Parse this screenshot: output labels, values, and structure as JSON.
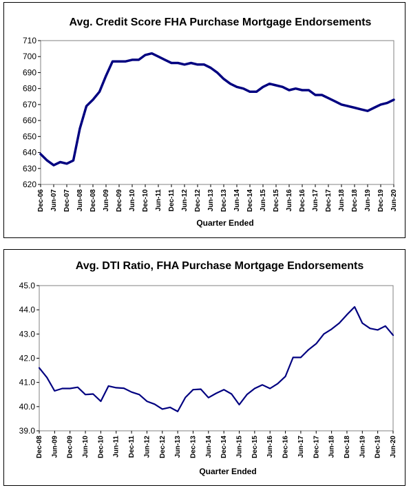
{
  "chart_data": [
    {
      "type": "line",
      "title": "Avg. Credit Score  FHA Purchase Mortgage Endorsements",
      "xlabel": "Quarter Ended",
      "ylabel": "",
      "ylim": [
        620,
        710
      ],
      "yticks": [
        620,
        630,
        640,
        650,
        660,
        670,
        680,
        690,
        700,
        710
      ],
      "grid": false,
      "line_color": "#000080",
      "xtick_labels": [
        "Dec-06",
        "Jun-07",
        "Dec-07",
        "Jun-08",
        "Dec-08",
        "Jun-09",
        "Dec-09",
        "Jun-10",
        "Dec-10",
        "Jun-11",
        "Dec-11",
        "Jun-12",
        "Dec-12",
        "Jun-13",
        "Dec-13",
        "Jun-14",
        "Dec-14",
        "Jun-15",
        "Dec-15",
        "Jun-16",
        "Dec-16",
        "Jun-17",
        "Dec-17",
        "Jun-18",
        "Dec-18",
        "Jun-19",
        "Dec-19",
        "Jun-20"
      ],
      "x": [
        "Dec-06",
        "Mar-07",
        "Jun-07",
        "Sep-07",
        "Dec-07",
        "Mar-08",
        "Jun-08",
        "Sep-08",
        "Dec-08",
        "Mar-09",
        "Jun-09",
        "Sep-09",
        "Dec-09",
        "Mar-10",
        "Jun-10",
        "Sep-10",
        "Dec-10",
        "Mar-11",
        "Jun-11",
        "Sep-11",
        "Dec-11",
        "Mar-12",
        "Jun-12",
        "Sep-12",
        "Dec-12",
        "Mar-13",
        "Jun-13",
        "Sep-13",
        "Dec-13",
        "Mar-14",
        "Jun-14",
        "Sep-14",
        "Dec-14",
        "Mar-15",
        "Jun-15",
        "Sep-15",
        "Dec-15",
        "Mar-16",
        "Jun-16",
        "Sep-16",
        "Dec-16",
        "Mar-17",
        "Jun-17",
        "Sep-17",
        "Dec-17",
        "Mar-18",
        "Jun-18",
        "Sep-18",
        "Dec-18",
        "Mar-19",
        "Jun-19",
        "Sep-19",
        "Dec-19",
        "Mar-20",
        "Jun-20"
      ],
      "series": [
        {
          "values": [
            639,
            635,
            632,
            634,
            633,
            635,
            655,
            669,
            673,
            678,
            688,
            697,
            697,
            697,
            698,
            698,
            701,
            702,
            700,
            698,
            696,
            696,
            695,
            696,
            695,
            695,
            693,
            690,
            686,
            683,
            681,
            680,
            678,
            678,
            681,
            683,
            682,
            681,
            679,
            680,
            679,
            679,
            676,
            676,
            674,
            672,
            670,
            669,
            668,
            667,
            666,
            668,
            670,
            671,
            673
          ]
        }
      ]
    },
    {
      "type": "line",
      "title": "Avg. DTI Ratio, FHA Purchase Mortgage Endorsements",
      "xlabel": "Quarter Ended",
      "ylabel": "",
      "ylim": [
        39.0,
        45.0
      ],
      "yticks": [
        "39.0",
        "40.0",
        "41.0",
        "42.0",
        "43.0",
        "44.0",
        "45.0"
      ],
      "grid": false,
      "line_color": "#000080",
      "xtick_labels": [
        "Dec-08",
        "Jun-09",
        "Dec-09",
        "Jun-10",
        "Dec-10",
        "Jun-11",
        "Dec-11",
        "Jun-12",
        "Dec-12",
        "Jun-13",
        "Dec-13",
        "Jun-14",
        "Dec-14",
        "Jun-15",
        "Dec-15",
        "Jun-16",
        "Dec-16",
        "Jun-17",
        "Dec-17",
        "Jun-18",
        "Dec-18",
        "Jun-19",
        "Dec-19",
        "Jun-20"
      ],
      "x": [
        "Dec-08",
        "Mar-09",
        "Jun-09",
        "Sep-09",
        "Dec-09",
        "Mar-10",
        "Jun-10",
        "Sep-10",
        "Dec-10",
        "Mar-11",
        "Jun-11",
        "Sep-11",
        "Dec-11",
        "Mar-12",
        "Jun-12",
        "Sep-12",
        "Dec-12",
        "Mar-13",
        "Jun-13",
        "Sep-13",
        "Dec-13",
        "Mar-14",
        "Jun-14",
        "Sep-14",
        "Dec-14",
        "Mar-15",
        "Jun-15",
        "Sep-15",
        "Dec-15",
        "Mar-16",
        "Jun-16",
        "Sep-16",
        "Dec-16",
        "Mar-17",
        "Jun-17",
        "Sep-17",
        "Dec-17",
        "Mar-18",
        "Jun-18",
        "Sep-18",
        "Dec-18",
        "Mar-19",
        "Jun-19",
        "Sep-19",
        "Dec-19",
        "Mar-20",
        "Jun-20"
      ],
      "series": [
        {
          "values": [
            41.6,
            41.2,
            40.65,
            40.75,
            40.75,
            40.8,
            40.5,
            40.52,
            40.22,
            40.85,
            40.78,
            40.76,
            40.6,
            40.5,
            40.22,
            40.1,
            39.9,
            39.97,
            39.8,
            40.38,
            40.7,
            40.72,
            40.37,
            40.55,
            40.7,
            40.52,
            40.08,
            40.5,
            40.75,
            40.9,
            40.75,
            40.95,
            41.25,
            42.03,
            42.03,
            42.35,
            42.6,
            43.0,
            43.2,
            43.45,
            43.8,
            44.12,
            43.45,
            43.23,
            43.17,
            43.33,
            42.95
          ]
        }
      ]
    }
  ]
}
